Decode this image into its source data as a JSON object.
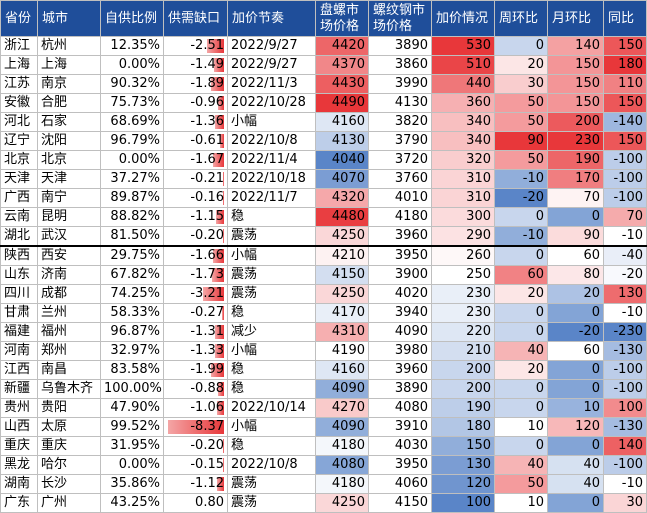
{
  "headers": [
    "省份",
    "城市",
    "自供比例",
    "供需缺口",
    "加价节奏",
    "盘螺市场价格",
    "螺纹钢市场价格",
    "加价情况",
    "周环比",
    "月环比",
    "同比"
  ],
  "colors": {
    "header_bg": "#1f4e9a",
    "red": "#e8373a",
    "blue": "#5a85c8",
    "white": "#ffffff"
  },
  "rows": [
    {
      "prov": "浙江",
      "city": "杭州",
      "ratio": "12.35%",
      "gap": "-2.51",
      "gap_v": -2.51,
      "pace": "2022/9/27",
      "pan": "4420",
      "rebar": "3890",
      "jia": "530",
      "wow": "0",
      "mom": "140",
      "yoy": "150"
    },
    {
      "prov": "上海",
      "city": "上海",
      "ratio": "0.00%",
      "gap": "-1.49",
      "gap_v": -1.49,
      "pace": "2022/9/27",
      "pan": "4370",
      "rebar": "3860",
      "jia": "510",
      "wow": "20",
      "mom": "150",
      "yoy": "180"
    },
    {
      "prov": "江苏",
      "city": "南京",
      "ratio": "90.32%",
      "gap": "-1.89",
      "gap_v": -1.89,
      "pace": "2022/11/3",
      "pan": "4430",
      "rebar": "3990",
      "jia": "440",
      "wow": "30",
      "mom": "150",
      "yoy": "110"
    },
    {
      "prov": "安徽",
      "city": "合肥",
      "ratio": "75.73%",
      "gap": "-0.96",
      "gap_v": -0.96,
      "pace": "2022/10/28",
      "pan": "4490",
      "rebar": "4130",
      "jia": "360",
      "wow": "50",
      "mom": "150",
      "yoy": "150"
    },
    {
      "prov": "河北",
      "city": "石家",
      "ratio": "68.69%",
      "gap": "-1.36",
      "gap_v": -1.36,
      "pace": "小幅",
      "pan": "4160",
      "rebar": "3820",
      "jia": "340",
      "wow": "50",
      "mom": "200",
      "yoy": "-140"
    },
    {
      "prov": "辽宁",
      "city": "沈阳",
      "ratio": "96.79%",
      "gap": "-0.61",
      "gap_v": -0.61,
      "pace": "2022/10/8",
      "pan": "4130",
      "rebar": "3790",
      "jia": "340",
      "wow": "90",
      "mom": "230",
      "yoy": "150"
    },
    {
      "prov": "北京",
      "city": "北京",
      "ratio": "0.00%",
      "gap": "-1.67",
      "gap_v": -1.67,
      "pace": "2022/11/4",
      "pan": "4040",
      "rebar": "3720",
      "jia": "320",
      "wow": "50",
      "mom": "190",
      "yoy": "-100"
    },
    {
      "prov": "天津",
      "city": "天津",
      "ratio": "37.27%",
      "gap": "-0.21",
      "gap_v": -0.21,
      "pace": "2022/10/18",
      "pan": "4070",
      "rebar": "3760",
      "jia": "310",
      "wow": "-10",
      "mom": "170",
      "yoy": "-100"
    },
    {
      "prov": "广西",
      "city": "南宁",
      "ratio": "89.87%",
      "gap": "-0.16",
      "gap_v": -0.16,
      "pace": "2022/11/7",
      "pan": "4320",
      "rebar": "4010",
      "jia": "310",
      "wow": "-20",
      "mom": "70",
      "yoy": "-100"
    },
    {
      "prov": "云南",
      "city": "昆明",
      "ratio": "88.82%",
      "gap": "-1.15",
      "gap_v": -1.15,
      "pace": "稳",
      "pan": "4480",
      "rebar": "4180",
      "jia": "300",
      "wow": "0",
      "mom": "0",
      "yoy": "70"
    },
    {
      "prov": "湖北",
      "city": "武汉",
      "ratio": "81.50%",
      "gap": "-0.20",
      "gap_v": -0.2,
      "pace": "震荡",
      "pan": "4250",
      "rebar": "3960",
      "jia": "290",
      "wow": "-10",
      "mom": "90",
      "yoy": "-10"
    },
    {
      "prov": "陕西",
      "city": "西安",
      "ratio": "29.75%",
      "gap": "-1.66",
      "gap_v": -1.66,
      "pace": "小幅",
      "pan": "4210",
      "rebar": "3950",
      "jia": "260",
      "wow": "0",
      "mom": "60",
      "yoy": "-40"
    },
    {
      "prov": "山东",
      "city": "济南",
      "ratio": "67.82%",
      "gap": "-1.73",
      "gap_v": -1.73,
      "pace": "震荡",
      "pan": "4150",
      "rebar": "3900",
      "jia": "250",
      "wow": "60",
      "mom": "80",
      "yoy": "-20"
    },
    {
      "prov": "四川",
      "city": "成都",
      "ratio": "74.25%",
      "gap": "-3.21",
      "gap_v": -3.21,
      "pace": "震荡",
      "pan": "4250",
      "rebar": "4020",
      "jia": "230",
      "wow": "20",
      "mom": "20",
      "yoy": "130"
    },
    {
      "prov": "甘肃",
      "city": "兰州",
      "ratio": "58.33%",
      "gap": "-0.27",
      "gap_v": -0.27,
      "pace": "稳",
      "pan": "4170",
      "rebar": "3940",
      "jia": "230",
      "wow": "0",
      "mom": "0",
      "yoy": "-10"
    },
    {
      "prov": "福建",
      "city": "福州",
      "ratio": "96.87%",
      "gap": "-1.31",
      "gap_v": -1.31,
      "pace": "减少",
      "pan": "4310",
      "rebar": "4090",
      "jia": "220",
      "wow": "0",
      "mom": "-20",
      "yoy": "-230"
    },
    {
      "prov": "河南",
      "city": "郑州",
      "ratio": "32.97%",
      "gap": "-1.33",
      "gap_v": -1.33,
      "pace": "小幅",
      "pan": "4190",
      "rebar": "3980",
      "jia": "210",
      "wow": "40",
      "mom": "60",
      "yoy": "-130"
    },
    {
      "prov": "江西",
      "city": "南昌",
      "ratio": "83.58%",
      "gap": "-1.99",
      "gap_v": -1.99,
      "pace": "稳",
      "pan": "4160",
      "rebar": "3960",
      "jia": "200",
      "wow": "20",
      "mom": "0",
      "yoy": "-100"
    },
    {
      "prov": "新疆",
      "city": "乌鲁木齐",
      "ratio": "100.00%",
      "gap": "-0.88",
      "gap_v": -0.88,
      "pace": "稳",
      "pan": "4090",
      "rebar": "3890",
      "jia": "200",
      "wow": "0",
      "mom": "0",
      "yoy": "-100"
    },
    {
      "prov": "贵州",
      "city": "贵阳",
      "ratio": "47.90%",
      "gap": "-1.06",
      "gap_v": -1.06,
      "pace": "2022/10/14",
      "pan": "4270",
      "rebar": "4080",
      "jia": "190",
      "wow": "0",
      "mom": "10",
      "yoy": "100"
    },
    {
      "prov": "山西",
      "city": "太原",
      "ratio": "99.52%",
      "gap": "-8.37",
      "gap_v": -8.37,
      "pace": "小幅",
      "pan": "4090",
      "rebar": "3910",
      "jia": "180",
      "wow": "10",
      "mom": "120",
      "yoy": "-130"
    },
    {
      "prov": "重庆",
      "city": "重庆",
      "ratio": "31.95%",
      "gap": "-0.20",
      "gap_v": -0.2,
      "pace": "稳",
      "pan": "4180",
      "rebar": "4030",
      "jia": "150",
      "wow": "0",
      "mom": "0",
      "yoy": "140"
    },
    {
      "prov": "黑龙",
      "city": "哈尔",
      "ratio": "0.00%",
      "gap": "-0.15",
      "gap_v": -0.15,
      "pace": "2022/10/8",
      "pan": "4080",
      "rebar": "3950",
      "jia": "130",
      "wow": "40",
      "mom": "40",
      "yoy": "-100"
    },
    {
      "prov": "湖南",
      "city": "长沙",
      "ratio": "35.86%",
      "gap": "-1.12",
      "gap_v": -1.12,
      "pace": "震荡",
      "pan": "4180",
      "rebar": "4060",
      "jia": "120",
      "wow": "50",
      "mom": "40",
      "yoy": "-10"
    },
    {
      "prov": "广东",
      "city": "广州",
      "ratio": "43.25%",
      "gap": "0.80",
      "gap_v": 0.8,
      "pace": "震荡",
      "pan": "4250",
      "rebar": "4150",
      "jia": "100",
      "wow": "10",
      "mom": "0",
      "yoy": "30"
    }
  ]
}
